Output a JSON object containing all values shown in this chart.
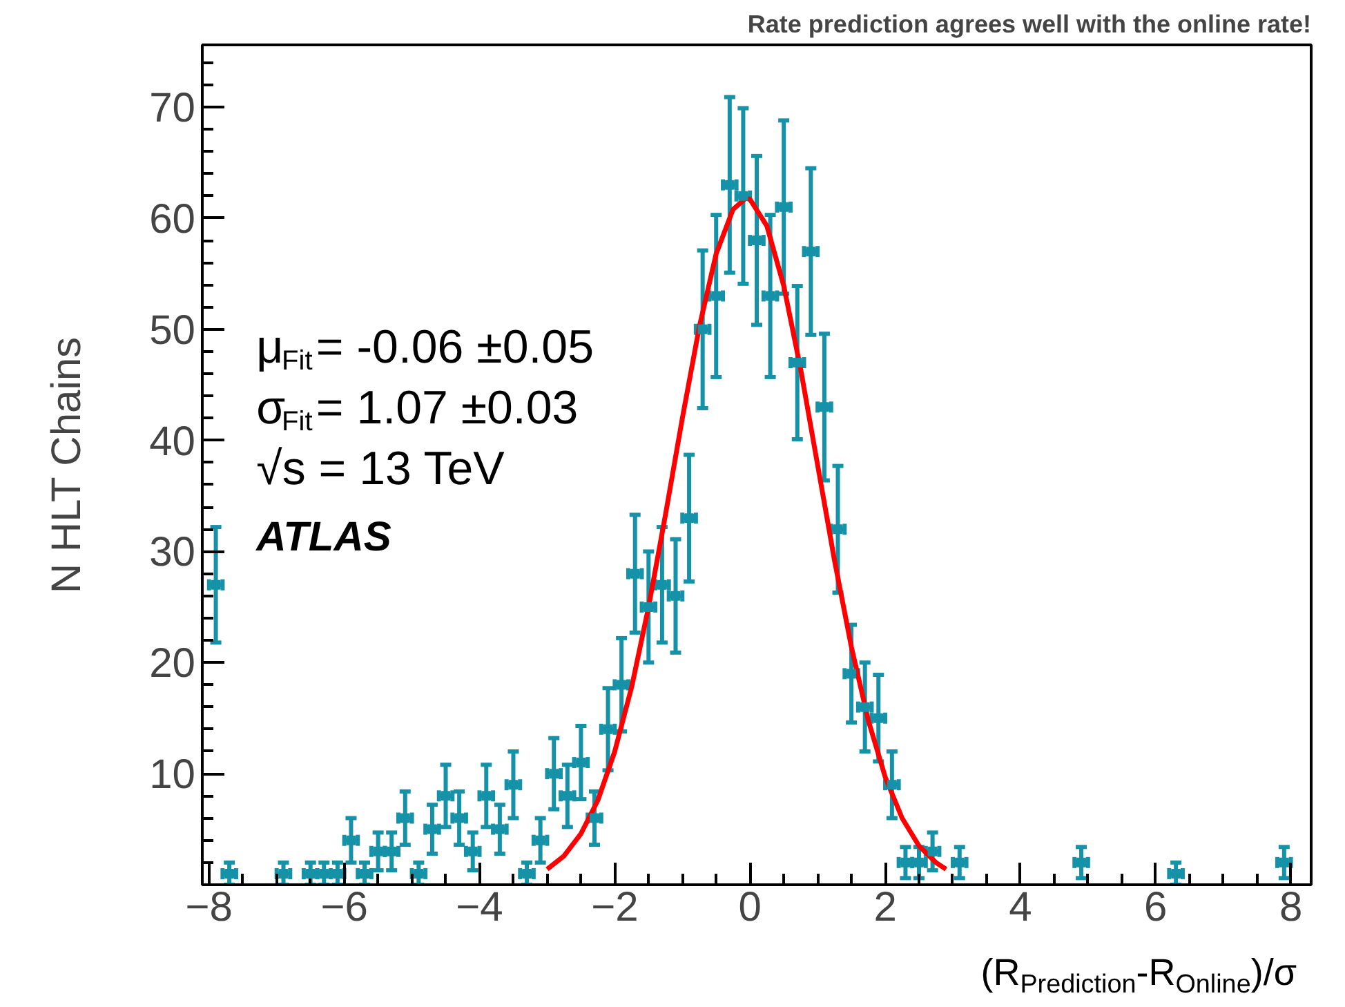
{
  "chart_data": {
    "type": "scatter",
    "title": "Rate prediction agrees well with the online rate!",
    "xlabel": "(R$_{Prediction}$-R$_{Online}$)/σ",
    "ylabel": "N HLT Chains",
    "annotations": [
      "μ$_{Fit}$= -0.06 ±0.05",
      "σ$_{Fit}$= 1.07 ±0.03",
      "√s = 13 TeV",
      "ATLAS"
    ],
    "xlim": [
      -8.1,
      8.3
    ],
    "ylim": [
      0,
      75.6
    ],
    "xticks": [
      -8,
      -6,
      -4,
      -2,
      0,
      2,
      4,
      6,
      8
    ],
    "yticks": [
      10,
      20,
      30,
      40,
      50,
      60,
      70
    ],
    "grid": false,
    "series": [
      {
        "color": "#1592a8",
        "marker": "square",
        "x": [
          -7.9,
          -7.7,
          -6.9,
          -6.5,
          -6.3,
          -6.1,
          -5.9,
          -5.7,
          -5.5,
          -5.3,
          -5.1,
          -4.9,
          -4.7,
          -4.5,
          -4.3,
          -4.1,
          -3.9,
          -3.7,
          -3.5,
          -3.3,
          -3.1,
          -2.9,
          -2.7,
          -2.5,
          -2.3,
          -2.1,
          -1.9,
          -1.7,
          -1.5,
          -1.3,
          -1.1,
          -0.9,
          -0.7,
          -0.5,
          -0.3,
          -0.1,
          0.1,
          0.3,
          0.5,
          0.7,
          0.9,
          1.1,
          1.3,
          1.5,
          1.7,
          1.9,
          2.1,
          2.3,
          2.5,
          2.7,
          3.1,
          4.9,
          6.3,
          7.9
        ],
        "values": [
          27,
          1,
          1,
          1,
          1,
          1,
          4,
          1,
          3,
          3,
          6,
          1,
          5,
          8,
          6,
          3,
          8,
          5,
          9,
          1,
          4,
          10,
          8,
          11,
          6,
          14,
          18,
          28,
          25,
          27,
          26,
          33,
          50,
          53,
          63,
          62,
          58,
          53,
          61,
          47,
          57,
          43,
          32,
          19,
          16,
          15,
          9,
          2,
          2,
          3,
          2,
          2,
          1,
          2
        ],
        "errors": [
          5.2,
          1,
          1,
          1,
          1,
          1,
          2,
          1,
          1.7,
          1.7,
          2.4,
          1,
          2.2,
          2.8,
          2.4,
          1.7,
          2.8,
          2.2,
          3,
          1,
          2,
          3.2,
          2.8,
          3.3,
          2.4,
          3.7,
          4.2,
          5.3,
          5,
          5.2,
          5.1,
          5.7,
          7.1,
          7.3,
          7.9,
          7.9,
          7.6,
          7.3,
          7.8,
          6.9,
          7.5,
          6.6,
          5.7,
          4.4,
          4,
          3.9,
          3,
          1.4,
          1.4,
          1.7,
          1.4,
          1.4,
          1,
          1.4
        ],
        "xerrors": [
          0.1,
          0.1,
          0.1,
          0.1,
          0.1,
          0.1,
          0.1,
          0.1,
          0.1,
          0.1,
          0.1,
          0.1,
          0.1,
          0.1,
          0.1,
          0.1,
          0.1,
          0.1,
          0.1,
          0.1,
          0.1,
          0.1,
          0.1,
          0.1,
          0.1,
          0.1,
          0.1,
          0.1,
          0.1,
          0.1,
          0.1,
          0.1,
          0.1,
          0.1,
          0.1,
          0.1,
          0.1,
          0.1,
          0.1,
          0.1,
          0.1,
          0.1,
          0.1,
          0.1,
          0.1,
          0.1,
          0.1,
          0.1,
          0.1,
          0.1,
          0.1,
          0.1,
          0.1,
          0.1
        ]
      },
      {
        "type": "line",
        "color": "#ff0000",
        "line_style": "solid",
        "x": [
          -3,
          -2.75,
          -2.5,
          -2.25,
          -2,
          -1.75,
          -1.5,
          -1.25,
          -1,
          -0.75,
          -0.5,
          -0.25,
          -0.06,
          0,
          0.25,
          0.5,
          0.75,
          1,
          1.25,
          1.5,
          1.75,
          2,
          2.25,
          2.5,
          2.75,
          2.9
        ],
        "values": [
          1.4,
          2.6,
          4.6,
          7.6,
          12,
          17.8,
          25,
          33.3,
          42,
          50.2,
          56.8,
          60.8,
          61.8,
          61.7,
          59.3,
          53.9,
          46.4,
          37.8,
          29.2,
          21.4,
          14.8,
          9.7,
          6,
          3.5,
          2,
          1.4
        ]
      }
    ]
  }
}
